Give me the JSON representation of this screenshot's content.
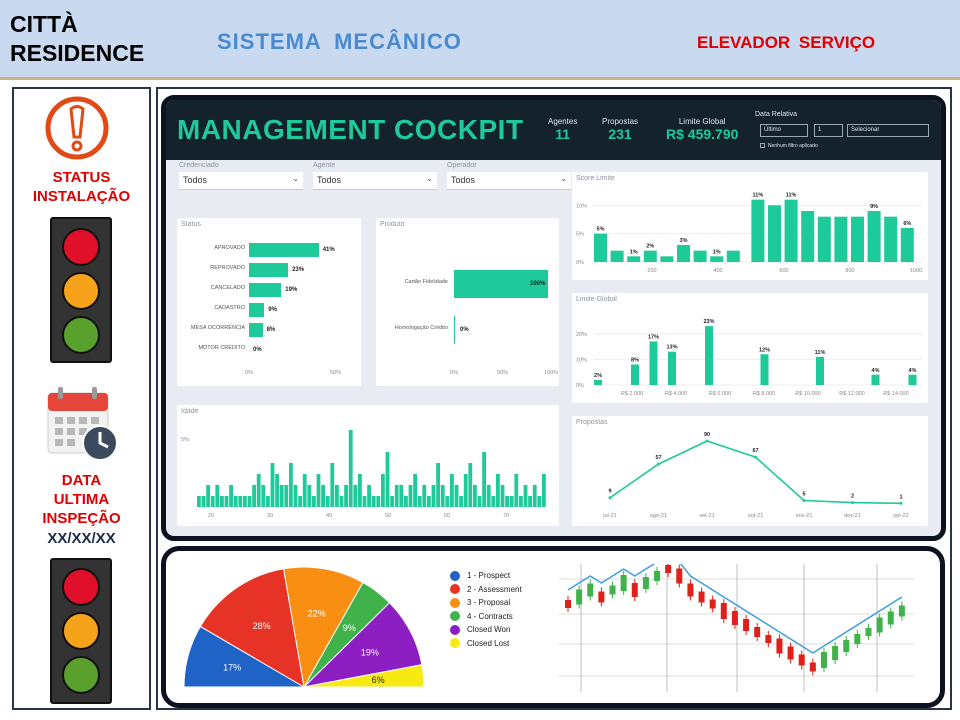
{
  "header": {
    "brand_line1": "CITTÀ",
    "brand_line2": "RESIDENCE",
    "system": "SISTEMA  MECÂNICO",
    "equipment": "ELEVADOR  SERVIÇO"
  },
  "sidebar": {
    "status_icon": "exclamation-circle-icon",
    "status_label_1": "STATUS",
    "status_label_2": "INSTALAÇÃO",
    "calendar_icon": "calendar-clock-icon",
    "date_label_1": "DATA",
    "date_label_2": "ULTIMA",
    "date_label_3": "INSPEÇÃO",
    "date_value": "XX/XX/XX",
    "colors": {
      "red": "#e0102a",
      "amber": "#f7a21b",
      "green": "#5aa02c"
    }
  },
  "dashboard": {
    "title": "MANAGEMENT COCKPIT",
    "kpis": [
      {
        "label": "Agentes",
        "value": "11"
      },
      {
        "label": "Propostas",
        "value": "231"
      },
      {
        "label": "Limite Global",
        "value": "R$ 459.790"
      }
    ],
    "date_filter": {
      "label": "Data Relativa",
      "period": "Último",
      "count": "1",
      "unit": "Selecionar",
      "checkbox_label": "Nenhum filtro aplicado"
    },
    "filters": [
      {
        "label": "Credenciado",
        "value": "Todos"
      },
      {
        "label": "Agente",
        "value": "Todos"
      },
      {
        "label": "Operador",
        "value": "Todos"
      }
    ],
    "accent": "#1ec99a"
  },
  "chart_data": [
    {
      "type": "bar",
      "title": "Status",
      "orientation": "horizontal",
      "categories": [
        "APROVADO",
        "REPROVADO",
        "CANCELADO",
        "CADASTRO",
        "MESA OCORRÊNCIA",
        "MOTOR CRÉDITO"
      ],
      "values": [
        41,
        23,
        19,
        9,
        8,
        0
      ],
      "value_labels": [
        "41%",
        "23%",
        "19%",
        "9%",
        "8%",
        "0%"
      ],
      "xticks": [
        "0%",
        "50%"
      ],
      "xlim": [
        0,
        50
      ]
    },
    {
      "type": "bar",
      "title": "Produto",
      "orientation": "horizontal",
      "categories": [
        "Cartão Fidelidade",
        "Homologação Crédito"
      ],
      "values": [
        100,
        0
      ],
      "value_labels": [
        "100%",
        "0%"
      ],
      "xticks": [
        "0%",
        "50%",
        "100%"
      ],
      "xlim": [
        0,
        100
      ]
    },
    {
      "type": "bar",
      "title": "Score Limite",
      "values": [
        5,
        2,
        1,
        2,
        1,
        3,
        2,
        1,
        2,
        11,
        10,
        11,
        9,
        8,
        8,
        8,
        9,
        8,
        6
      ],
      "labels": {
        "0": "5%",
        "2": "1%",
        "3": "2%",
        "5": "3%",
        "7": "1%",
        "9": "11%",
        "11": "11%",
        "16": "9%",
        "18": "6%"
      },
      "xticks": [
        "200",
        "400",
        "600",
        "800",
        "1000"
      ],
      "yticks": [
        "0%",
        "5%",
        "10%"
      ],
      "ylim": [
        0,
        12
      ]
    },
    {
      "type": "bar",
      "title": "Limite Global",
      "values": [
        2,
        0,
        8,
        17,
        13,
        0,
        23,
        0,
        0,
        12,
        0,
        0,
        11,
        0,
        0,
        4,
        0,
        4
      ],
      "labels": [
        "2%",
        "",
        "8%",
        "17%",
        "13%",
        "",
        "23%",
        "",
        "",
        "12%",
        "",
        "",
        "11%",
        "",
        "",
        "4%",
        "",
        "4%"
      ],
      "xticks": [
        "R$ 2.000",
        "R$ 4.000",
        "R$ 6.000",
        "R$ 8.000",
        "R$ 10.000",
        "R$ 12.000",
        "R$ 14.000"
      ],
      "yticks": [
        "0%",
        "10%",
        "20%"
      ],
      "ylim": [
        0,
        25
      ]
    },
    {
      "type": "bar",
      "title": "Idade",
      "values": [
        1,
        1,
        2,
        1,
        2,
        1,
        1,
        2,
        1,
        1,
        1,
        1,
        2,
        3,
        2,
        1,
        4,
        3,
        2,
        2,
        4,
        2,
        1,
        3,
        2,
        1,
        3,
        2,
        1,
        4,
        2,
        1,
        2,
        7,
        2,
        3,
        1,
        2,
        1,
        1,
        3,
        5,
        1,
        2,
        2,
        1,
        2,
        3,
        1,
        2,
        1,
        2,
        4,
        2,
        1,
        3,
        2,
        1,
        3,
        4,
        2,
        1,
        5,
        2,
        1,
        3,
        2,
        1,
        1,
        3,
        1,
        2,
        1,
        2,
        1,
        3
      ],
      "xticks": [
        "20",
        "30",
        "40",
        "50",
        "60",
        "70"
      ],
      "yticks": [
        "5%"
      ]
    },
    {
      "type": "line",
      "title": "Propostas",
      "categories": [
        "jul-21",
        "ago-21",
        "set-21",
        "out-21",
        "nov-21",
        "dez-21",
        "jan-22"
      ],
      "values": [
        9,
        57,
        90,
        67,
        5,
        2,
        1
      ],
      "ylim": [
        0,
        100
      ]
    },
    {
      "type": "pie",
      "subtype": "half-donut",
      "slices": [
        {
          "name": "1 - Prospect",
          "value": 17,
          "color": "#1f63c6"
        },
        {
          "name": "2 - Assessment",
          "value": 28,
          "color": "#e63325"
        },
        {
          "name": "3 - Proposal",
          "value": 22,
          "color": "#f98f12"
        },
        {
          "name": "4 - Contracts",
          "value": 9,
          "color": "#3fb24a"
        },
        {
          "name": "Closed Won",
          "value": 19,
          "color": "#8d1fc2"
        },
        {
          "name": "Closed Lost",
          "value": 6,
          "color": "#f7ea12"
        }
      ],
      "labels": [
        "17%",
        "28%",
        "22%",
        "9%",
        "19%",
        "6%"
      ]
    },
    {
      "type": "candlestick",
      "series": [
        {
          "name": "trend",
          "values": [
            10,
            11,
            12,
            11,
            12,
            13,
            12,
            13,
            14,
            15,
            14,
            12,
            11,
            10,
            9,
            8,
            7,
            6,
            5,
            4,
            3,
            2,
            1,
            2,
            3,
            4,
            5,
            6,
            7,
            8,
            9
          ]
        }
      ]
    }
  ],
  "legend": {
    "items": [
      "1 - Prospect",
      "2 - Assessment",
      "3 - Proposal",
      "4 - Contracts",
      "Closed Won",
      "Closed Lost"
    ],
    "colors": [
      "#1f63c6",
      "#e63325",
      "#f98f12",
      "#3fb24a",
      "#8d1fc2",
      "#f7ea12"
    ]
  }
}
